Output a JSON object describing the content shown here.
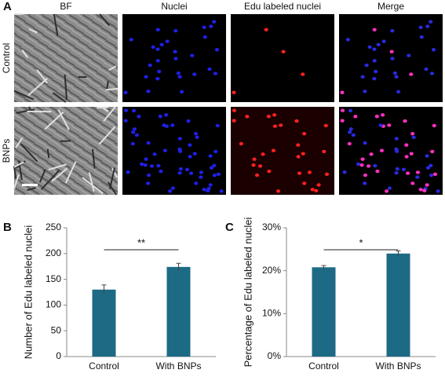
{
  "figure_a": {
    "label": "A",
    "columns": [
      "BF",
      "Nuclei",
      "Edu labeled nuclei",
      "Merge"
    ],
    "rows": [
      "Control",
      "BNPs"
    ]
  },
  "chart_data": [
    {
      "type": "bar",
      "label": "B",
      "ylabel": "Number of Edu labeled nuclei",
      "categories": [
        "Control",
        "With BNPs"
      ],
      "values": [
        130,
        174
      ],
      "errors": [
        9,
        7
      ],
      "color": "#1d6a85",
      "ylim": [
        0,
        250
      ],
      "yticks": [
        0,
        50,
        100,
        150,
        200,
        250
      ],
      "annotation": "**"
    },
    {
      "type": "bar",
      "label": "C",
      "ylabel": "Percentage of Edu labeled nuclei",
      "categories": [
        "Control",
        "With BNPs"
      ],
      "values": [
        20.8,
        24.0
      ],
      "errors": [
        0.4,
        0.6
      ],
      "color": "#1d6a85",
      "ylim": [
        0,
        30
      ],
      "yticks": [
        {
          "value": 0,
          "label": "0%"
        },
        {
          "value": 10,
          "label": "10%"
        },
        {
          "value": 20,
          "label": "20%"
        },
        {
          "value": 30,
          "label": "30%"
        }
      ],
      "annotation": "*"
    }
  ]
}
